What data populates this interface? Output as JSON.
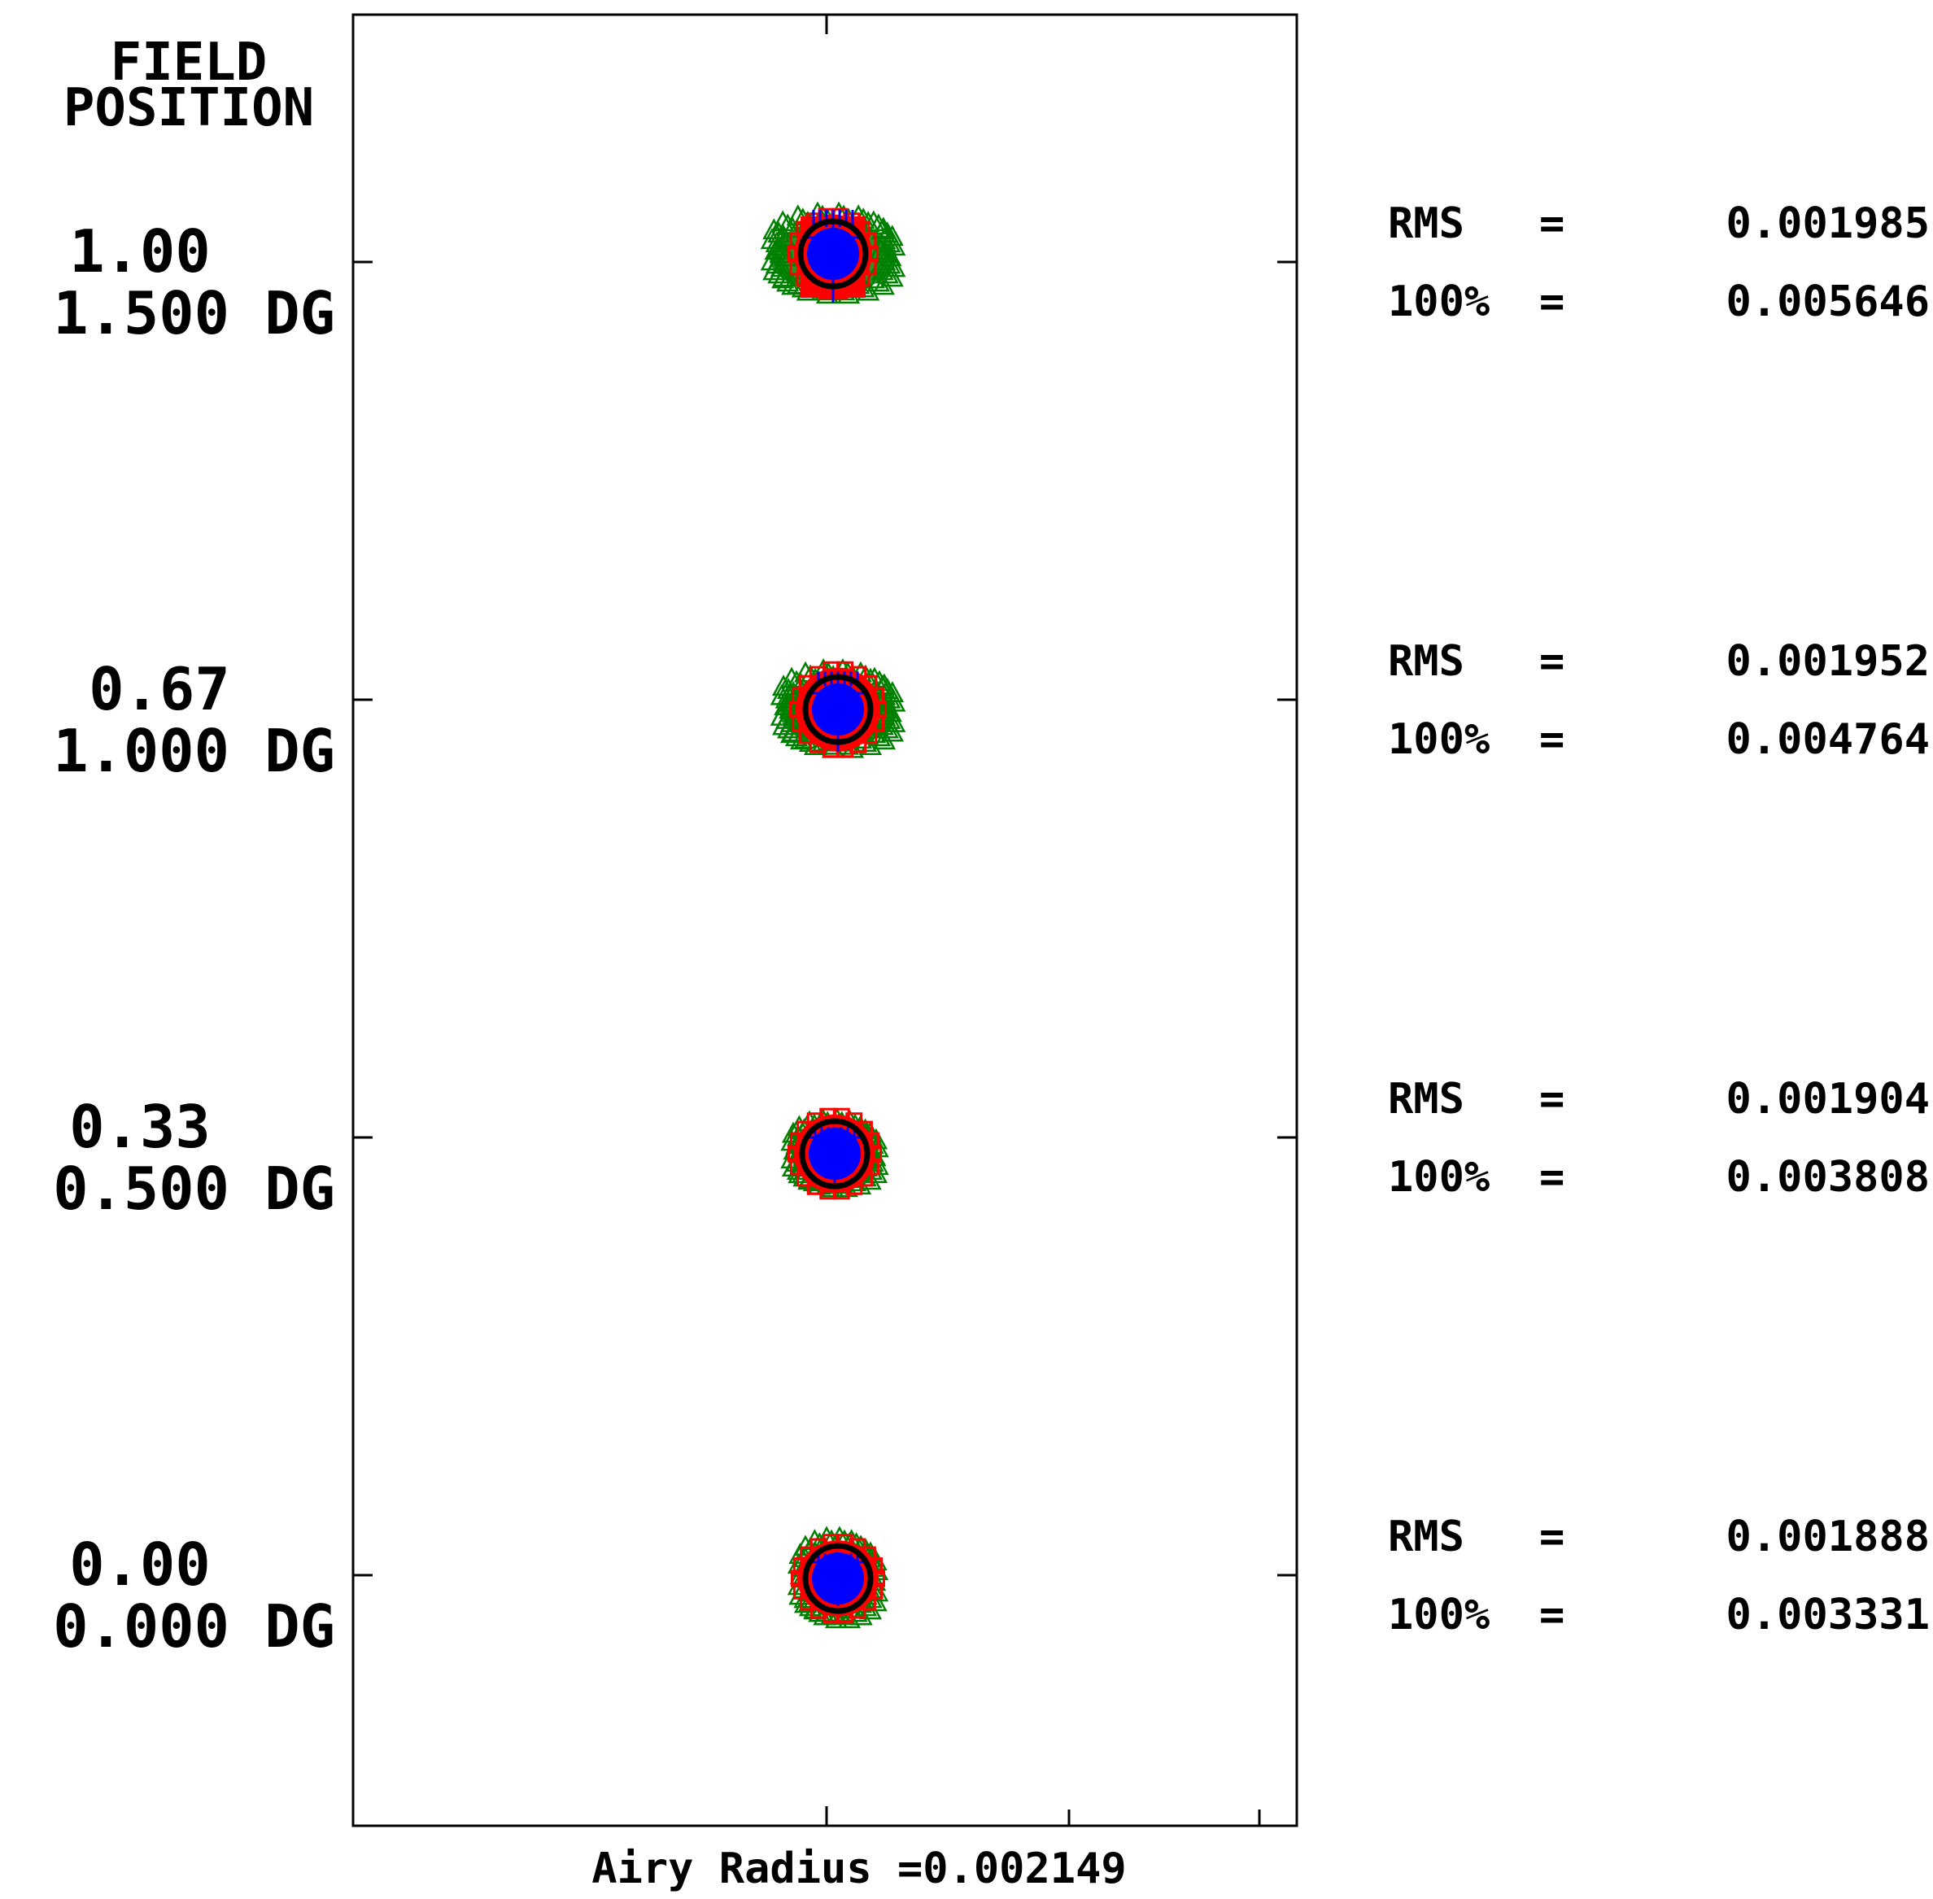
{
  "header": {
    "line1": "FIELD",
    "line2": "POSITION"
  },
  "fields": [
    {
      "rel": "1.00",
      "angle": "1.500 DG",
      "rms_label": "RMS",
      "rms_eq": "=",
      "rms": "0.001985",
      "geo_label": "100%",
      "geo_eq": "=",
      "geo": "0.005646"
    },
    {
      "rel": "0.67",
      "angle": "1.000 DG",
      "rms_label": "RMS",
      "rms_eq": "=",
      "rms": "0.001952",
      "geo_label": "100%",
      "geo_eq": "=",
      "geo": "0.004764"
    },
    {
      "rel": "0.33",
      "angle": "0.500 DG",
      "rms_label": "RMS",
      "rms_eq": "=",
      "rms": "0.001904",
      "geo_label": "100%",
      "geo_eq": "=",
      "geo": "0.003808"
    },
    {
      "rel": "0.00",
      "angle": "0.000 DG",
      "rms_label": "RMS",
      "rms_eq": "=",
      "rms": "0.001888",
      "geo_label": "100%",
      "geo_eq": "=",
      "geo": "0.003331"
    }
  ],
  "airy_label": "Airy Radius =0.002149",
  "colors": {
    "wave1": "#0000ff",
    "wave2": "#ff0000",
    "wave3": "#008000",
    "airy_circle": "#000000"
  }
}
